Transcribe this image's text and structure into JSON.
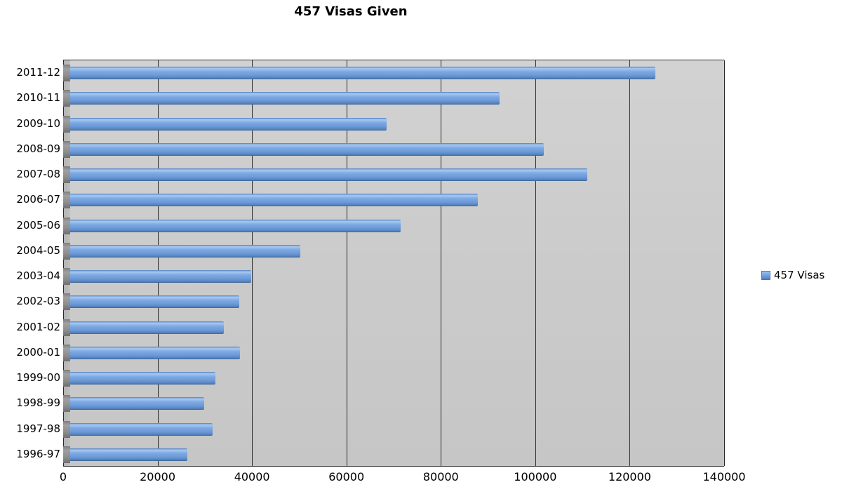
{
  "title": "457 Visas Given",
  "legend": {
    "label": "457 Visas",
    "color": "#6f9dde"
  },
  "chart_data": {
    "type": "bar",
    "orientation": "horizontal",
    "title": "457 Visas Given",
    "categories": [
      "2011-12",
      "2010-11",
      "2009-10",
      "2008-09",
      "2007-08",
      "2006-07",
      "2005-06",
      "2004-05",
      "2003-04",
      "2002-03",
      "2001-02",
      "2000-01",
      "1999-00",
      "1998-99",
      "1997-98",
      "1996-97"
    ],
    "values": [
      125500,
      92500,
      68500,
      101800,
      111000,
      87800,
      71500,
      50200,
      39800,
      37300,
      34000,
      37400,
      32200,
      29900,
      31700,
      26300
    ],
    "series_name": "457 Visas",
    "xlabel": "",
    "ylabel": "",
    "xlim": [
      0,
      140000
    ],
    "x_ticks": [
      0,
      20000,
      40000,
      60000,
      80000,
      100000,
      120000,
      140000
    ],
    "grid": true,
    "legend_position": "right",
    "bar_color": "#6f9dde",
    "plot_background": "#cbcbcb",
    "gridline_color": "#2a2a2a"
  }
}
